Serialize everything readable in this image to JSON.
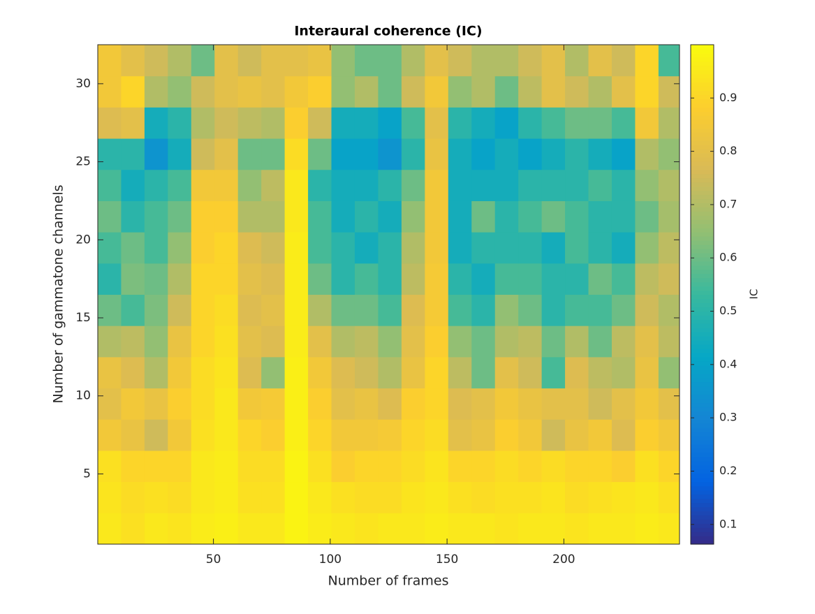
{
  "chart_data": {
    "type": "heatmap",
    "title": "Interaural coherence (IC)",
    "xlabel": "Number of frames",
    "ylabel": "Number of gammatone channels",
    "x_bins": [
      0.5,
      10.5,
      20.5,
      30.5,
      40.5,
      50.5,
      60.5,
      70.5,
      80.5,
      90.5,
      100.5,
      110.5,
      120.5,
      130.5,
      140.5,
      150.5,
      160.5,
      170.5,
      180.5,
      190.5,
      200.5,
      210.5,
      220.5,
      230.5,
      240.5,
      249.5
    ],
    "y_bins": [
      0.5,
      2.5,
      4.5,
      6.5,
      8.5,
      10.5,
      12.5,
      14.5,
      16.5,
      18.5,
      20.5,
      22.5,
      24.5,
      26.5,
      28.5,
      30.5,
      32.5
    ],
    "values": [
      [
        0.95,
        0.93,
        0.95,
        0.94,
        0.96,
        0.97,
        0.95,
        0.95,
        0.98,
        0.96,
        0.95,
        0.94,
        0.95,
        0.95,
        0.96,
        0.95,
        0.95,
        0.94,
        0.95,
        0.95,
        0.94,
        0.95,
        0.95,
        0.96,
        0.95
      ],
      [
        0.94,
        0.92,
        0.93,
        0.92,
        0.95,
        0.96,
        0.93,
        0.93,
        0.98,
        0.95,
        0.93,
        0.92,
        0.92,
        0.94,
        0.95,
        0.93,
        0.92,
        0.93,
        0.93,
        0.94,
        0.92,
        0.93,
        0.94,
        0.95,
        0.93
      ],
      [
        0.93,
        0.9,
        0.9,
        0.9,
        0.95,
        0.96,
        0.92,
        0.92,
        0.98,
        0.93,
        0.88,
        0.9,
        0.9,
        0.92,
        0.94,
        0.9,
        0.9,
        0.92,
        0.9,
        0.92,
        0.9,
        0.9,
        0.88,
        0.93,
        0.9
      ],
      [
        0.85,
        0.82,
        0.75,
        0.85,
        0.93,
        0.95,
        0.9,
        0.88,
        0.97,
        0.9,
        0.85,
        0.85,
        0.86,
        0.9,
        0.92,
        0.8,
        0.82,
        0.88,
        0.85,
        0.75,
        0.82,
        0.85,
        0.78,
        0.88,
        0.85
      ],
      [
        0.8,
        0.85,
        0.82,
        0.88,
        0.92,
        0.95,
        0.85,
        0.86,
        0.97,
        0.88,
        0.8,
        0.82,
        0.78,
        0.88,
        0.9,
        0.78,
        0.8,
        0.85,
        0.82,
        0.8,
        0.8,
        0.75,
        0.8,
        0.85,
        0.8
      ],
      [
        0.82,
        0.78,
        0.7,
        0.85,
        0.92,
        0.94,
        0.78,
        0.65,
        0.97,
        0.85,
        0.78,
        0.75,
        0.7,
        0.82,
        0.9,
        0.72,
        0.6,
        0.8,
        0.75,
        0.55,
        0.78,
        0.72,
        0.7,
        0.82,
        0.65
      ],
      [
        0.7,
        0.72,
        0.65,
        0.82,
        0.9,
        0.93,
        0.8,
        0.78,
        0.96,
        0.8,
        0.7,
        0.72,
        0.65,
        0.8,
        0.88,
        0.65,
        0.6,
        0.7,
        0.72,
        0.6,
        0.7,
        0.6,
        0.72,
        0.8,
        0.72
      ],
      [
        0.6,
        0.55,
        0.62,
        0.75,
        0.9,
        0.92,
        0.78,
        0.8,
        0.96,
        0.7,
        0.6,
        0.6,
        0.55,
        0.78,
        0.86,
        0.55,
        0.5,
        0.65,
        0.6,
        0.5,
        0.55,
        0.55,
        0.6,
        0.75,
        0.7
      ],
      [
        0.5,
        0.62,
        0.6,
        0.7,
        0.9,
        0.9,
        0.8,
        0.78,
        0.96,
        0.6,
        0.5,
        0.55,
        0.5,
        0.72,
        0.86,
        0.5,
        0.45,
        0.55,
        0.55,
        0.5,
        0.5,
        0.6,
        0.55,
        0.72,
        0.75
      ],
      [
        0.55,
        0.6,
        0.55,
        0.65,
        0.88,
        0.9,
        0.78,
        0.75,
        0.96,
        0.55,
        0.5,
        0.45,
        0.5,
        0.7,
        0.85,
        0.45,
        0.5,
        0.5,
        0.5,
        0.45,
        0.55,
        0.5,
        0.45,
        0.65,
        0.72
      ],
      [
        0.6,
        0.5,
        0.55,
        0.6,
        0.88,
        0.88,
        0.7,
        0.7,
        0.95,
        0.55,
        0.45,
        0.5,
        0.45,
        0.65,
        0.85,
        0.45,
        0.6,
        0.5,
        0.55,
        0.6,
        0.55,
        0.5,
        0.5,
        0.6,
        0.68
      ],
      [
        0.55,
        0.45,
        0.5,
        0.55,
        0.85,
        0.85,
        0.65,
        0.72,
        0.95,
        0.5,
        0.45,
        0.45,
        0.5,
        0.6,
        0.85,
        0.45,
        0.45,
        0.45,
        0.5,
        0.5,
        0.5,
        0.55,
        0.5,
        0.65,
        0.7
      ],
      [
        0.5,
        0.5,
        0.35,
        0.45,
        0.75,
        0.8,
        0.6,
        0.6,
        0.92,
        0.6,
        0.4,
        0.4,
        0.35,
        0.5,
        0.82,
        0.45,
        0.4,
        0.45,
        0.4,
        0.45,
        0.5,
        0.45,
        0.4,
        0.7,
        0.65
      ],
      [
        0.78,
        0.8,
        0.45,
        0.5,
        0.7,
        0.75,
        0.72,
        0.7,
        0.88,
        0.75,
        0.45,
        0.45,
        0.4,
        0.55,
        0.8,
        0.5,
        0.45,
        0.4,
        0.5,
        0.55,
        0.6,
        0.6,
        0.55,
        0.85,
        0.7
      ],
      [
        0.85,
        0.9,
        0.7,
        0.65,
        0.75,
        0.8,
        0.82,
        0.8,
        0.85,
        0.88,
        0.65,
        0.7,
        0.6,
        0.75,
        0.85,
        0.65,
        0.7,
        0.6,
        0.72,
        0.8,
        0.75,
        0.7,
        0.8,
        0.9,
        0.75
      ],
      [
        0.85,
        0.8,
        0.75,
        0.7,
        0.6,
        0.8,
        0.75,
        0.8,
        0.8,
        0.82,
        0.65,
        0.6,
        0.6,
        0.7,
        0.8,
        0.75,
        0.7,
        0.7,
        0.75,
        0.8,
        0.7,
        0.8,
        0.75,
        0.9,
        0.55
      ]
    ],
    "xlim": [
      0.5,
      249.5
    ],
    "xticks": [
      50,
      100,
      150,
      200
    ],
    "ylim": [
      0.5,
      32.5
    ],
    "yticks": [
      5,
      10,
      15,
      20,
      25,
      30
    ],
    "colorbar": {
      "label": "IC",
      "lim": [
        0.063,
        1.0
      ],
      "ticks": [
        0.1,
        0.2,
        0.3,
        0.4,
        0.5,
        0.6,
        0.7,
        0.8,
        0.9
      ]
    },
    "colormap": [
      "#352a87",
      "#0363e1",
      "#1485d4",
      "#06a7c6",
      "#38b99e",
      "#92bf73",
      "#d9ba56",
      "#fcce2e",
      "#f9fb0e"
    ]
  }
}
